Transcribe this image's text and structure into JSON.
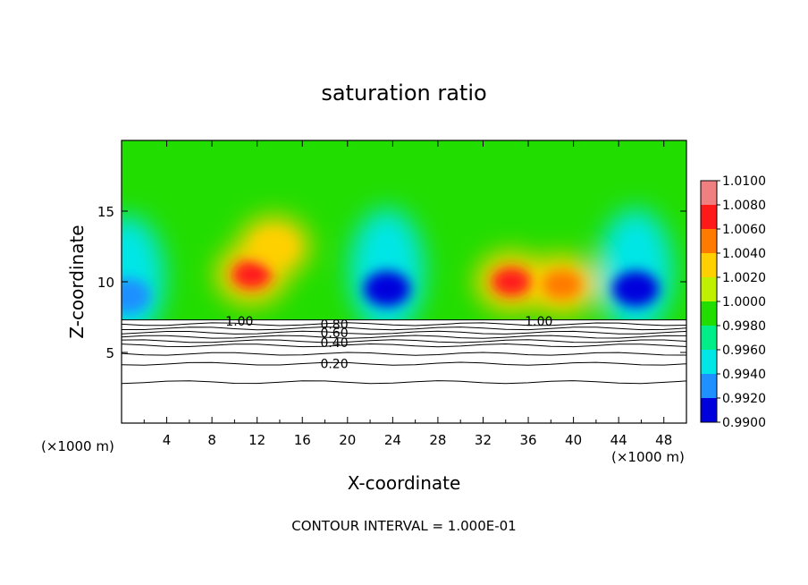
{
  "chart_data": {
    "type": "heatmap",
    "title": "saturation ratio",
    "xlabel": "X-coordinate",
    "ylabel": "Z-coordinate",
    "x_unit_left": "(×1000 m)",
    "x_unit_right": "(×1000 m)",
    "footer": "CONTOUR INTERVAL = 1.000E-01",
    "xlim": [
      0,
      50
    ],
    "ylim": [
      0,
      20
    ],
    "xticks": [
      "4",
      "8",
      "12",
      "16",
      "20",
      "24",
      "28",
      "32",
      "36",
      "40",
      "44",
      "48"
    ],
    "xtick_values": [
      4,
      8,
      12,
      16,
      20,
      24,
      28,
      32,
      36,
      40,
      44,
      48
    ],
    "yticks": [
      "5",
      "10",
      "15"
    ],
    "ytick_values": [
      5,
      10,
      15
    ],
    "colorbar": {
      "labels": [
        "1.0100",
        "1.0080",
        "1.0060",
        "1.0040",
        "1.0020",
        "1.0000",
        "0.9980",
        "0.9960",
        "0.9940",
        "0.9920",
        "0.9900"
      ],
      "levels": [
        1.01,
        1.008,
        1.006,
        1.004,
        1.002,
        1.0,
        0.998,
        0.996,
        0.994,
        0.992,
        0.99
      ],
      "colors": [
        "#f08080",
        "#ff1a1a",
        "#ff7a00",
        "#ffd000",
        "#bff000",
        "#22dd00",
        "#00ee88",
        "#00e6e6",
        "#1e90ff",
        "#0000dd",
        "#7a00a8"
      ]
    },
    "contour_labels": [
      {
        "text": "1.00",
        "x": 9.2,
        "z": 7.2
      },
      {
        "text": "1.00",
        "x": 35.7,
        "z": 7.2
      },
      {
        "text": "0.80",
        "x": 17.6,
        "z": 7.0
      },
      {
        "text": "0.60",
        "x": 17.6,
        "z": 6.4
      },
      {
        "text": "0.40",
        "x": 17.6,
        "z": 5.7
      },
      {
        "text": "0.20",
        "x": 17.6,
        "z": 4.2
      }
    ],
    "contour_levels_below": [
      {
        "value": 0.9,
        "z": 7.0
      },
      {
        "value": 0.8,
        "z": 6.7
      },
      {
        "value": 0.7,
        "z": 6.4
      },
      {
        "value": 0.6,
        "z": 6.1
      },
      {
        "value": 0.5,
        "z": 5.8
      },
      {
        "value": 0.4,
        "z": 5.5
      },
      {
        "value": 0.3,
        "z": 4.9
      },
      {
        "value": 0.2,
        "z": 4.2
      },
      {
        "value": 0.1,
        "z": 2.9
      }
    ],
    "fields": {
      "base_z": 7.3,
      "moist_cores": [
        {
          "x": 11.5,
          "z": 10.5,
          "value": 1.008
        },
        {
          "x": 13.5,
          "z": 12.5,
          "value": 1.005
        },
        {
          "x": 34.5,
          "z": 10.0,
          "value": 1.008
        },
        {
          "x": 39.0,
          "z": 9.8,
          "value": 1.007
        }
      ],
      "dry_cores": [
        {
          "x": 23.5,
          "z": 9.5,
          "value": 0.991
        },
        {
          "x": 45.5,
          "z": 9.5,
          "value": 0.992
        },
        {
          "x": 0.5,
          "z": 9.0,
          "value": 0.993
        }
      ]
    }
  }
}
